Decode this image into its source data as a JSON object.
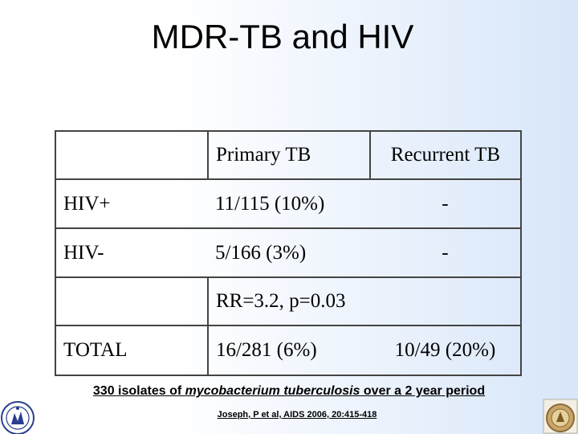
{
  "slide": {
    "title": "MDR-TB and HIV"
  },
  "table": {
    "headers": [
      "",
      "Primary TB",
      "Recurrent TB"
    ],
    "rows": [
      {
        "label": "HIV+",
        "primary": "11/115 (10%)",
        "recurrent": "-"
      },
      {
        "label": "HIV-",
        "primary": "5/166 (3%)",
        "recurrent": "-"
      }
    ],
    "stat": "RR=3.2, p=0.03",
    "total": {
      "label": "TOTAL",
      "primary": "16/281 (6%)",
      "recurrent": "10/49 (20%)"
    }
  },
  "footnote": {
    "prefix": "330 isolates of ",
    "organism": "mycobacterium tuberculosis",
    "suffix": " over a 2 year period"
  },
  "reference": "Joseph, P et al, AIDS 2006, 20:415-418",
  "logos": {
    "left": "university-seal-icon",
    "right": "crest-icon"
  },
  "colors": {
    "background_left": "#ffffff",
    "background_right": "#d7e6f9",
    "table_border": "#444444"
  }
}
